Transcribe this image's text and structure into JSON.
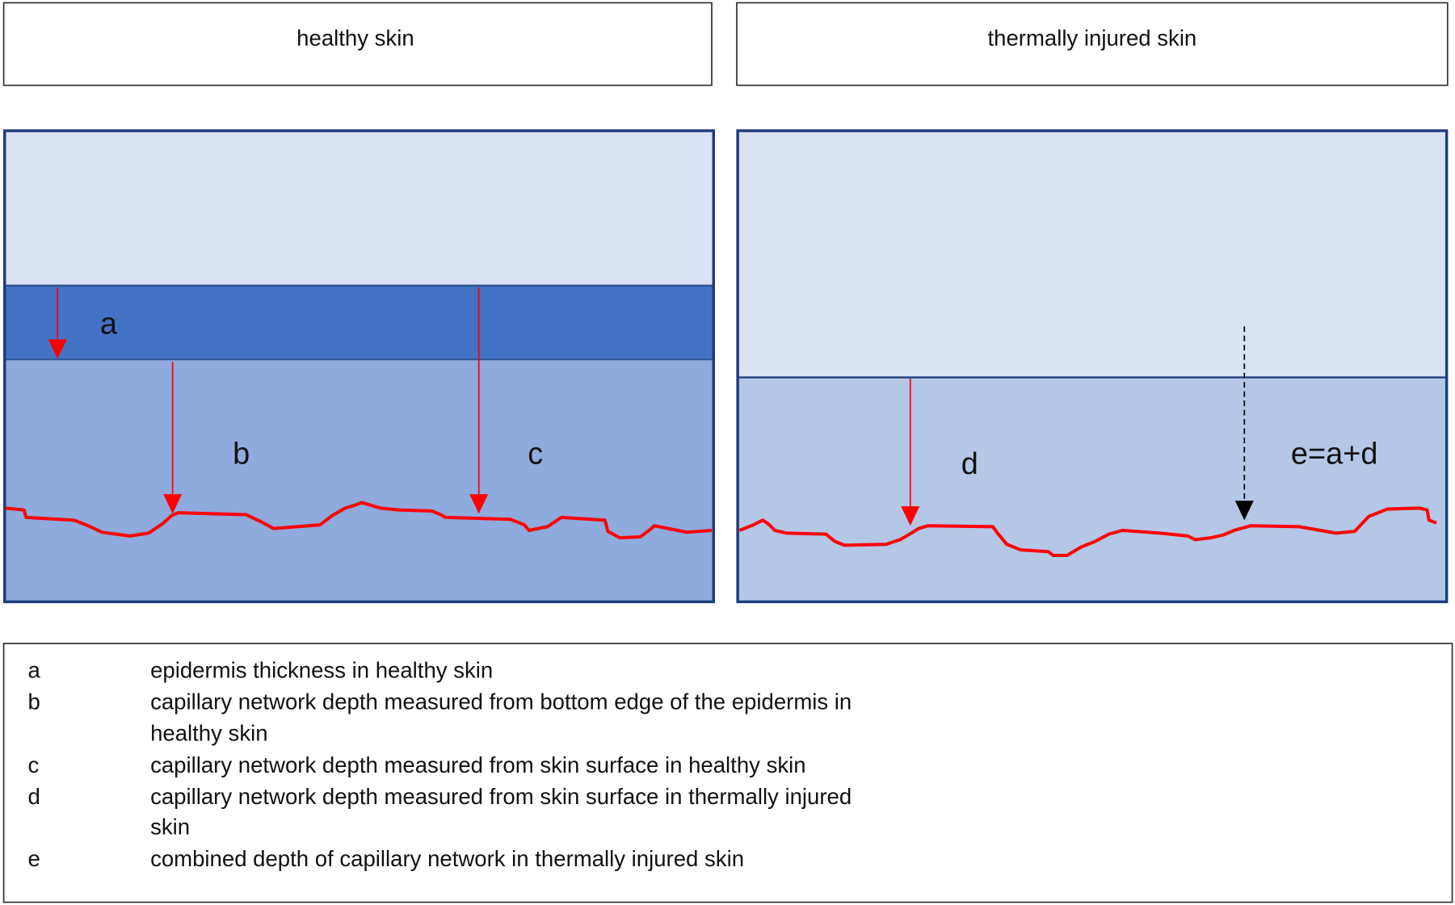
{
  "headers": {
    "left": "healthy skin",
    "right": "thermally injured skin"
  },
  "labels": {
    "a": "a",
    "b": "b",
    "c": "c",
    "d": "d",
    "e": "e=a+d"
  },
  "legend": [
    {
      "key": "a",
      "lines": [
        "epidermis thickness in healthy skin"
      ]
    },
    {
      "key": "b",
      "lines": [
        "capillary network depth measured from bottom edge of the epidermis in",
        "healthy skin"
      ]
    },
    {
      "key": "c",
      "lines": [
        "capillary network depth measured from skin surface in healthy skin"
      ]
    },
    {
      "key": "d",
      "lines": [
        "capillary network depth measured from skin surface in thermally injured",
        "skin"
      ]
    },
    {
      "key": "e",
      "lines": [
        "combined depth of capillary network in thermally injured skin"
      ]
    }
  ],
  "colors": {
    "border": "#1f3b7a",
    "light": "#dae3f3",
    "epidermis": "#4472c4",
    "dermis": "#8faadc",
    "injured_dermis": "#b4c7e7",
    "capillary": "#ff0000"
  }
}
